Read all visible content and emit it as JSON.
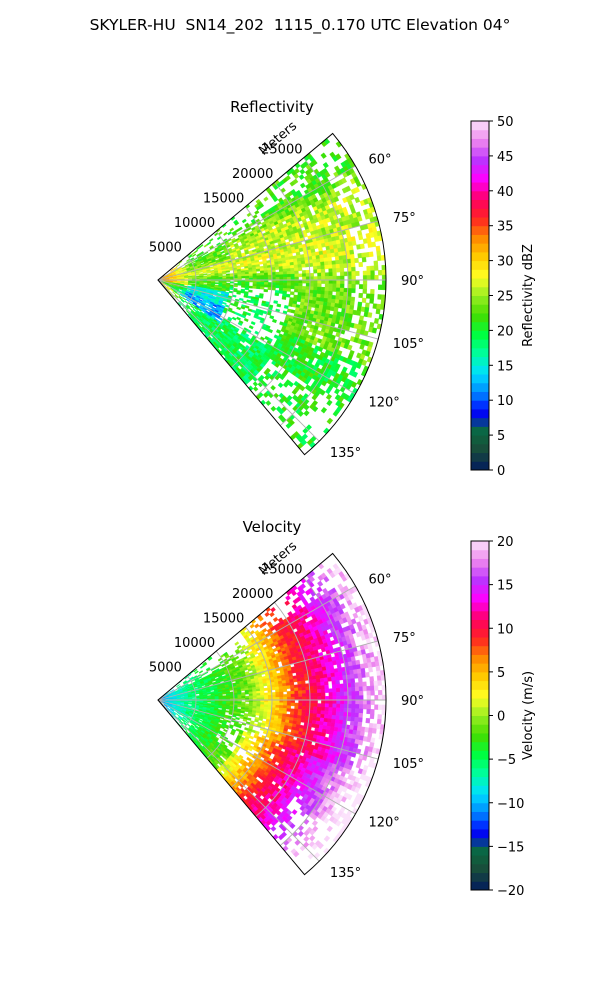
{
  "figure": {
    "suptitle": "SKYLER-HU  SN14_202  1115_0.170 UTC Elevation 04°"
  },
  "chart_data": [
    {
      "type": "heatmap",
      "projection": "polar-sector",
      "title": "Reflectivity",
      "radial_axis_label": "Meters",
      "radial_ticks": [
        5000,
        10000,
        15000,
        20000,
        25000
      ],
      "radial_tick_labels": [
        "5000",
        "10000",
        "15000",
        "20000",
        "25000"
      ],
      "radial_range": [
        0,
        30000
      ],
      "azimuth_range_deg": [
        50,
        140
      ],
      "azimuth_ticks_deg": [
        60,
        75,
        90,
        105,
        120,
        135
      ],
      "azimuth_tick_labels": [
        "60°",
        "75°",
        "90°",
        "105°",
        "120°",
        "135°"
      ],
      "grid": true,
      "colorbar": {
        "label": "Reflectivity dBZ",
        "min": 0,
        "max": 50,
        "ticks": [
          0,
          5,
          10,
          15,
          20,
          25,
          30,
          35,
          40,
          45,
          50
        ],
        "tick_labels": [
          "0",
          "5",
          "10",
          "15",
          "20",
          "25",
          "30",
          "35",
          "40",
          "45",
          "50"
        ],
        "colormap": [
          "#001a5e",
          "#1a4a3a",
          "#0a6a40",
          "#0000ff",
          "#0088ff",
          "#00e0ff",
          "#00ffa0",
          "#00ff40",
          "#44dd00",
          "#99ee22",
          "#ffff22",
          "#ffcc00",
          "#ff8800",
          "#ff2222",
          "#ff0066",
          "#ff00ff",
          "#bb33ff",
          "#ee88ee",
          "#fbe2fb"
        ]
      },
      "field_description": [
        {
          "region": "near radar (0-4 km)",
          "value_dbz": 33
        },
        {
          "region": "main band along 80°",
          "value_dbz": 24
        },
        {
          "region": "north-east band along 70°",
          "value_dbz": 27
        },
        {
          "region": "clear hole 95°-120° at 10-17 km",
          "value_dbz": null
        },
        {
          "region": "south-west edge near 125°",
          "value_dbz": 16
        },
        {
          "region": "outer arc 20-28 km",
          "value_dbz": 22
        }
      ]
    },
    {
      "type": "heatmap",
      "projection": "polar-sector",
      "title": "Velocity",
      "radial_axis_label": "Meters",
      "radial_ticks": [
        5000,
        10000,
        15000,
        20000,
        25000
      ],
      "radial_tick_labels": [
        "5000",
        "10000",
        "15000",
        "20000",
        "25000"
      ],
      "radial_range": [
        0,
        30000
      ],
      "azimuth_range_deg": [
        50,
        140
      ],
      "azimuth_ticks_deg": [
        60,
        75,
        90,
        105,
        120,
        135
      ],
      "azimuth_tick_labels": [
        "60°",
        "75°",
        "90°",
        "105°",
        "120°",
        "135°"
      ],
      "grid": true,
      "colorbar": {
        "label": "Velocity (m/s)",
        "min": -20,
        "max": 20,
        "ticks": [
          -20,
          -15,
          -10,
          -5,
          0,
          5,
          10,
          15,
          20
        ],
        "tick_labels": [
          "−20",
          "−15",
          "−10",
          "−5",
          "0",
          "5",
          "10",
          "15",
          "20"
        ],
        "colormap": [
          "#001a5e",
          "#1a4a3a",
          "#0a6a40",
          "#0000ff",
          "#0088ff",
          "#00e0ff",
          "#00ffa0",
          "#00ff40",
          "#44dd00",
          "#99ee22",
          "#ffff22",
          "#ffcc00",
          "#ff8800",
          "#ff2222",
          "#ff0066",
          "#ff00ff",
          "#bb33ff",
          "#ee88ee",
          "#fbe2fb"
        ]
      },
      "field_description": [
        {
          "region": "near radar (0-4 km)",
          "value_ms": -11
        },
        {
          "region": "inner area 5-12 km",
          "value_ms": -5
        },
        {
          "region": "middle ring 13-17 km",
          "value_ms": 0
        },
        {
          "region": "outer ring 18-22 km",
          "value_ms": 10
        },
        {
          "region": "outer edge 23-28 km, 60°-110°",
          "value_ms": 15
        }
      ]
    }
  ]
}
